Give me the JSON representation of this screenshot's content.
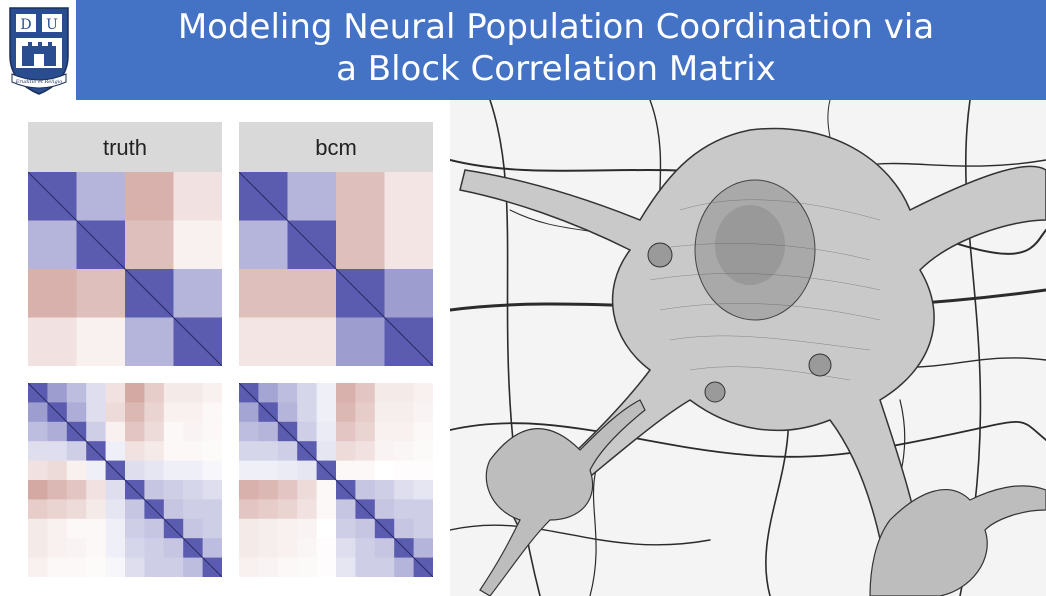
{
  "slide": {
    "title_line1": "Modeling Neural Population Coordination via",
    "title_line2": "a Block Correlation Matrix",
    "logo_letters": [
      "D",
      "U"
    ],
    "logo_motto": "Eruditio et Religio"
  },
  "panels": [
    {
      "label": "truth"
    },
    {
      "label": "bcm"
    }
  ],
  "matrices": {
    "top_truth": {
      "n": 4,
      "values": [
        [
          1.0,
          0.45,
          -0.55,
          -0.2
        ],
        [
          0.45,
          1.0,
          -0.45,
          -0.1
        ],
        [
          -0.55,
          -0.45,
          1.0,
          0.45
        ],
        [
          -0.2,
          -0.1,
          0.45,
          1.0
        ]
      ]
    },
    "top_bcm": {
      "n": 4,
      "values": [
        [
          1.0,
          0.45,
          -0.45,
          -0.18
        ],
        [
          0.45,
          1.0,
          -0.45,
          -0.18
        ],
        [
          -0.45,
          -0.45,
          1.0,
          0.6
        ],
        [
          -0.18,
          -0.18,
          0.6,
          1.0
        ]
      ]
    },
    "bottom_truth": {
      "n": 10,
      "values": [
        [
          1.0,
          0.6,
          0.4,
          0.2,
          -0.2,
          -0.6,
          -0.35,
          -0.15,
          -0.15,
          -0.1
        ],
        [
          0.6,
          1.0,
          0.5,
          0.2,
          -0.25,
          -0.5,
          -0.3,
          -0.1,
          -0.1,
          -0.05
        ],
        [
          0.4,
          0.5,
          1.0,
          0.3,
          -0.1,
          -0.4,
          -0.25,
          -0.05,
          -0.08,
          -0.05
        ],
        [
          0.2,
          0.2,
          0.3,
          1.0,
          0.1,
          -0.2,
          -0.15,
          -0.05,
          -0.05,
          -0.03
        ],
        [
          -0.2,
          -0.25,
          -0.1,
          0.1,
          1.0,
          0.2,
          0.15,
          0.1,
          0.1,
          0.05
        ],
        [
          -0.6,
          -0.5,
          -0.4,
          -0.2,
          0.2,
          1.0,
          0.35,
          0.3,
          0.25,
          0.2
        ],
        [
          -0.35,
          -0.3,
          -0.25,
          -0.15,
          0.15,
          0.35,
          1.0,
          0.35,
          0.3,
          0.3
        ],
        [
          -0.15,
          -0.1,
          -0.05,
          -0.05,
          0.1,
          0.3,
          0.35,
          1.0,
          0.35,
          0.3
        ],
        [
          -0.15,
          -0.1,
          -0.08,
          -0.05,
          0.1,
          0.25,
          0.3,
          0.35,
          1.0,
          0.4
        ],
        [
          -0.1,
          -0.05,
          -0.05,
          -0.03,
          0.05,
          0.2,
          0.3,
          0.3,
          0.4,
          1.0
        ]
      ]
    },
    "bottom_bcm": {
      "n": 10,
      "values": [
        [
          1.0,
          0.55,
          0.4,
          0.25,
          0.1,
          -0.55,
          -0.4,
          -0.15,
          -0.15,
          -0.1
        ],
        [
          0.55,
          1.0,
          0.45,
          0.25,
          0.1,
          -0.5,
          -0.35,
          -0.12,
          -0.12,
          -0.08
        ],
        [
          0.4,
          0.45,
          1.0,
          0.3,
          0.12,
          -0.4,
          -0.3,
          -0.1,
          -0.1,
          -0.05
        ],
        [
          0.25,
          0.25,
          0.3,
          1.0,
          0.15,
          -0.25,
          -0.2,
          -0.08,
          -0.06,
          -0.04
        ],
        [
          0.1,
          0.1,
          0.12,
          0.15,
          1.0,
          -0.05,
          -0.05,
          0.0,
          -0.02,
          -0.02
        ],
        [
          -0.55,
          -0.5,
          -0.4,
          -0.25,
          -0.05,
          1.0,
          0.35,
          0.3,
          0.2,
          0.15
        ],
        [
          -0.4,
          -0.35,
          -0.3,
          -0.2,
          -0.05,
          0.35,
          1.0,
          0.35,
          0.3,
          0.3
        ],
        [
          -0.15,
          -0.12,
          -0.1,
          -0.08,
          0.0,
          0.3,
          0.35,
          1.0,
          0.35,
          0.3
        ],
        [
          -0.15,
          -0.12,
          -0.1,
          -0.06,
          -0.02,
          0.2,
          0.3,
          0.35,
          1.0,
          0.45
        ],
        [
          -0.1,
          -0.08,
          -0.05,
          -0.04,
          -0.02,
          0.15,
          0.3,
          0.3,
          0.45,
          1.0
        ]
      ]
    }
  },
  "colors": {
    "title_bar": "#4472c4",
    "positive": "#5b5bb0",
    "negative": "#b87068",
    "neutral": "#ffffff",
    "panel_header": "#d9d9d9"
  }
}
